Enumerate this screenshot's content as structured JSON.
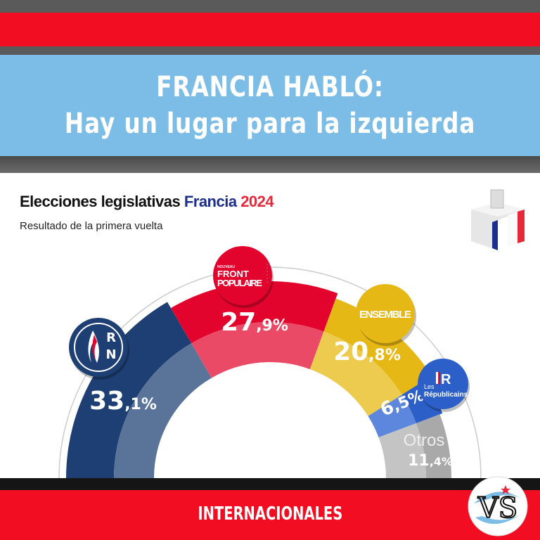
{
  "header": {
    "line1": "FRANCIA HABLÓ:",
    "line2": "Hay un lugar para la izquierda"
  },
  "title": {
    "part1": "Elecciones legislativas ",
    "part2": "Francia ",
    "part3": "2024"
  },
  "subtitle": "Resultado de la primera vuelta",
  "footer": {
    "label": "INTERNACIONALES",
    "logo_text": "VS"
  },
  "chart_data": {
    "type": "pie",
    "shape": "semicircle",
    "title": "Elecciones legislativas Francia 2024",
    "subtitle": "Resultado de la primera vuelta",
    "series": [
      {
        "name": "RN",
        "label": "33,1%",
        "value": 33.1,
        "color": "#1e3f73",
        "inner": "#5a7499",
        "logo": [
          "R",
          "N"
        ]
      },
      {
        "name": "Nouveau Front Populaire",
        "label": "27,9%",
        "value": 27.9,
        "color": "#e2042d",
        "inner": "#ea4a66",
        "logo": [
          "NOUVEAU",
          "FRONT",
          "POPULAIRE"
        ]
      },
      {
        "name": "Ensemble",
        "label": "20,8%",
        "value": 20.8,
        "color": "#e6b816",
        "inner": "#eccb4e",
        "logo": [
          "ENSEMBLE"
        ]
      },
      {
        "name": "Les Républicains",
        "label": "6,5%",
        "value": 6.5,
        "color": "#2d5fc9",
        "inner": "#5d87dd",
        "logo": [
          "Les",
          "Républicains"
        ]
      },
      {
        "name": "Otros",
        "label": "11,4%",
        "value": 11.4,
        "color": "#a9a9a9",
        "inner": "#c4c4c4",
        "logo": []
      }
    ]
  }
}
